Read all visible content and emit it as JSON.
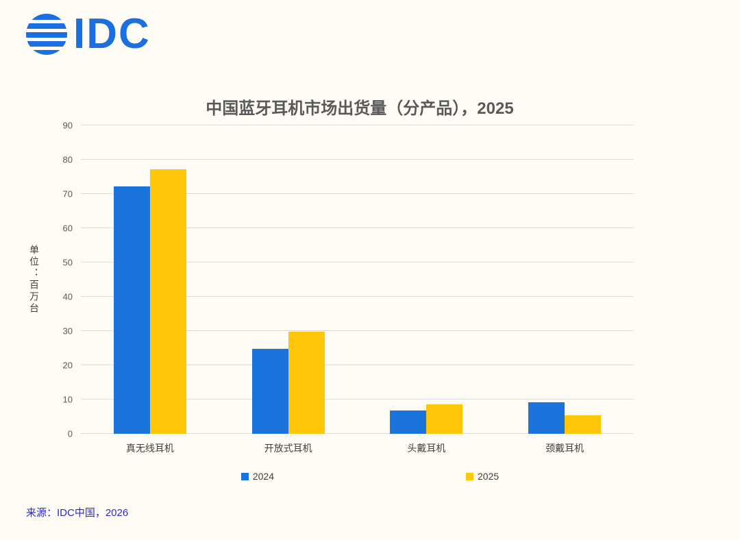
{
  "page": {
    "background": "#FEFCF5"
  },
  "logo": {
    "text": "IDC",
    "color": "#1B6FE0"
  },
  "chart_data": {
    "type": "bar",
    "title": "中国蓝牙耳机市场出货量（分产品），2025",
    "ylabel": "单位：百万台",
    "xlabel": "",
    "categories": [
      "真无线耳机",
      "开放式耳机",
      "头戴耳机",
      "颈戴耳机"
    ],
    "series": [
      {
        "name": "2024",
        "color": "#1B74DB",
        "values": [
          72.3,
          24.9,
          6.9,
          9.3
        ]
      },
      {
        "name": "2025",
        "color": "#FFC60A",
        "values": [
          77.3,
          29.9,
          8.7,
          5.4
        ]
      }
    ],
    "ylim": [
      0,
      90
    ],
    "ytick_step": 10,
    "grid": true,
    "legend_position": "bottom"
  },
  "source": {
    "text": "来源：IDC中国，2026",
    "color": "#2929CC"
  }
}
